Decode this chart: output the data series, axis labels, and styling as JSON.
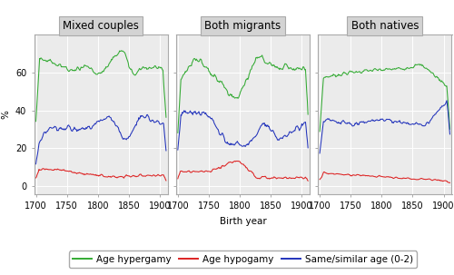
{
  "panels": [
    "Mixed couples",
    "Both migrants",
    "Both natives"
  ],
  "xlabel": "Birth year",
  "ylabel": "%",
  "xticks": [
    1700,
    1750,
    1800,
    1850,
    1900
  ],
  "yticks": [
    0,
    20,
    40,
    60
  ],
  "ylim": [
    -4,
    80
  ],
  "xlim": [
    1697,
    1913
  ],
  "colors": {
    "green": "#33AA33",
    "red": "#DD2222",
    "blue": "#2233BB"
  },
  "legend_labels": [
    "Age hypergamy",
    "Age hypogamy",
    "Same/similar age (0-2)"
  ],
  "background_color": "#EBEBEB",
  "panel_header_color": "#D3D3D3",
  "grid_color": "white",
  "title_fontsize": 8.5,
  "axis_fontsize": 7.5,
  "tick_fontsize": 7,
  "legend_fontsize": 7.5
}
